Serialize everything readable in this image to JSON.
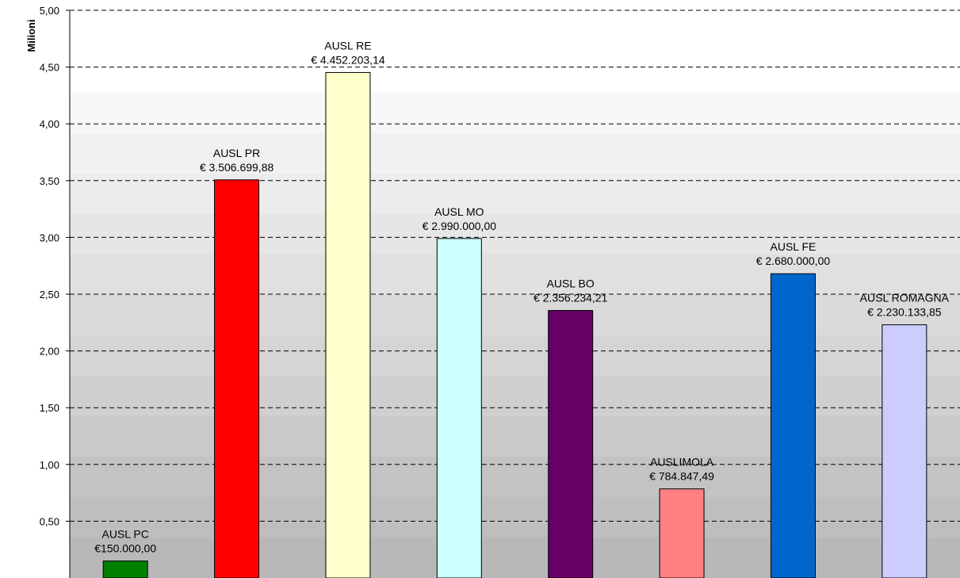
{
  "chart_data": {
    "type": "bar",
    "title": "",
    "xlabel": "",
    "ylabel": "Milioni",
    "ylim": [
      0,
      5
    ],
    "yticks": [
      "0,50",
      "1,00",
      "1,50",
      "2,00",
      "2,50",
      "3,00",
      "3,50",
      "4,00",
      "4,50",
      "5,00"
    ],
    "ytick_values": [
      0.5,
      1,
      1.5,
      2,
      2.5,
      3,
      3.5,
      4,
      4.5,
      5
    ],
    "grid": true,
    "legend": "none",
    "categories": [
      "AUSL PC",
      "AUSL PR",
      "AUSL RE",
      "AUSL MO",
      "AUSL BO",
      "AUSLIMOLA",
      "AUSL FE",
      "AUSL ROMAGNA"
    ],
    "values": [
      0.15,
      3.50669988,
      4.45220314,
      2.99,
      2.35623421,
      0.78484749,
      2.68,
      2.23013385
    ],
    "value_labels": [
      "€150.000,00",
      "€ 3.506.699,88",
      "€ 4.452.203,14",
      "€ 2.990.000,00",
      "€ 2.356.234,21",
      "€ 784.847,49",
      "€ 2.680.000,00",
      "€ 2.230.133,85"
    ],
    "colors": [
      "#008000",
      "#ff0000",
      "#ffffcc",
      "#ccffff",
      "#660066",
      "#ff8080",
      "#0066cc",
      "#ccccff"
    ]
  }
}
